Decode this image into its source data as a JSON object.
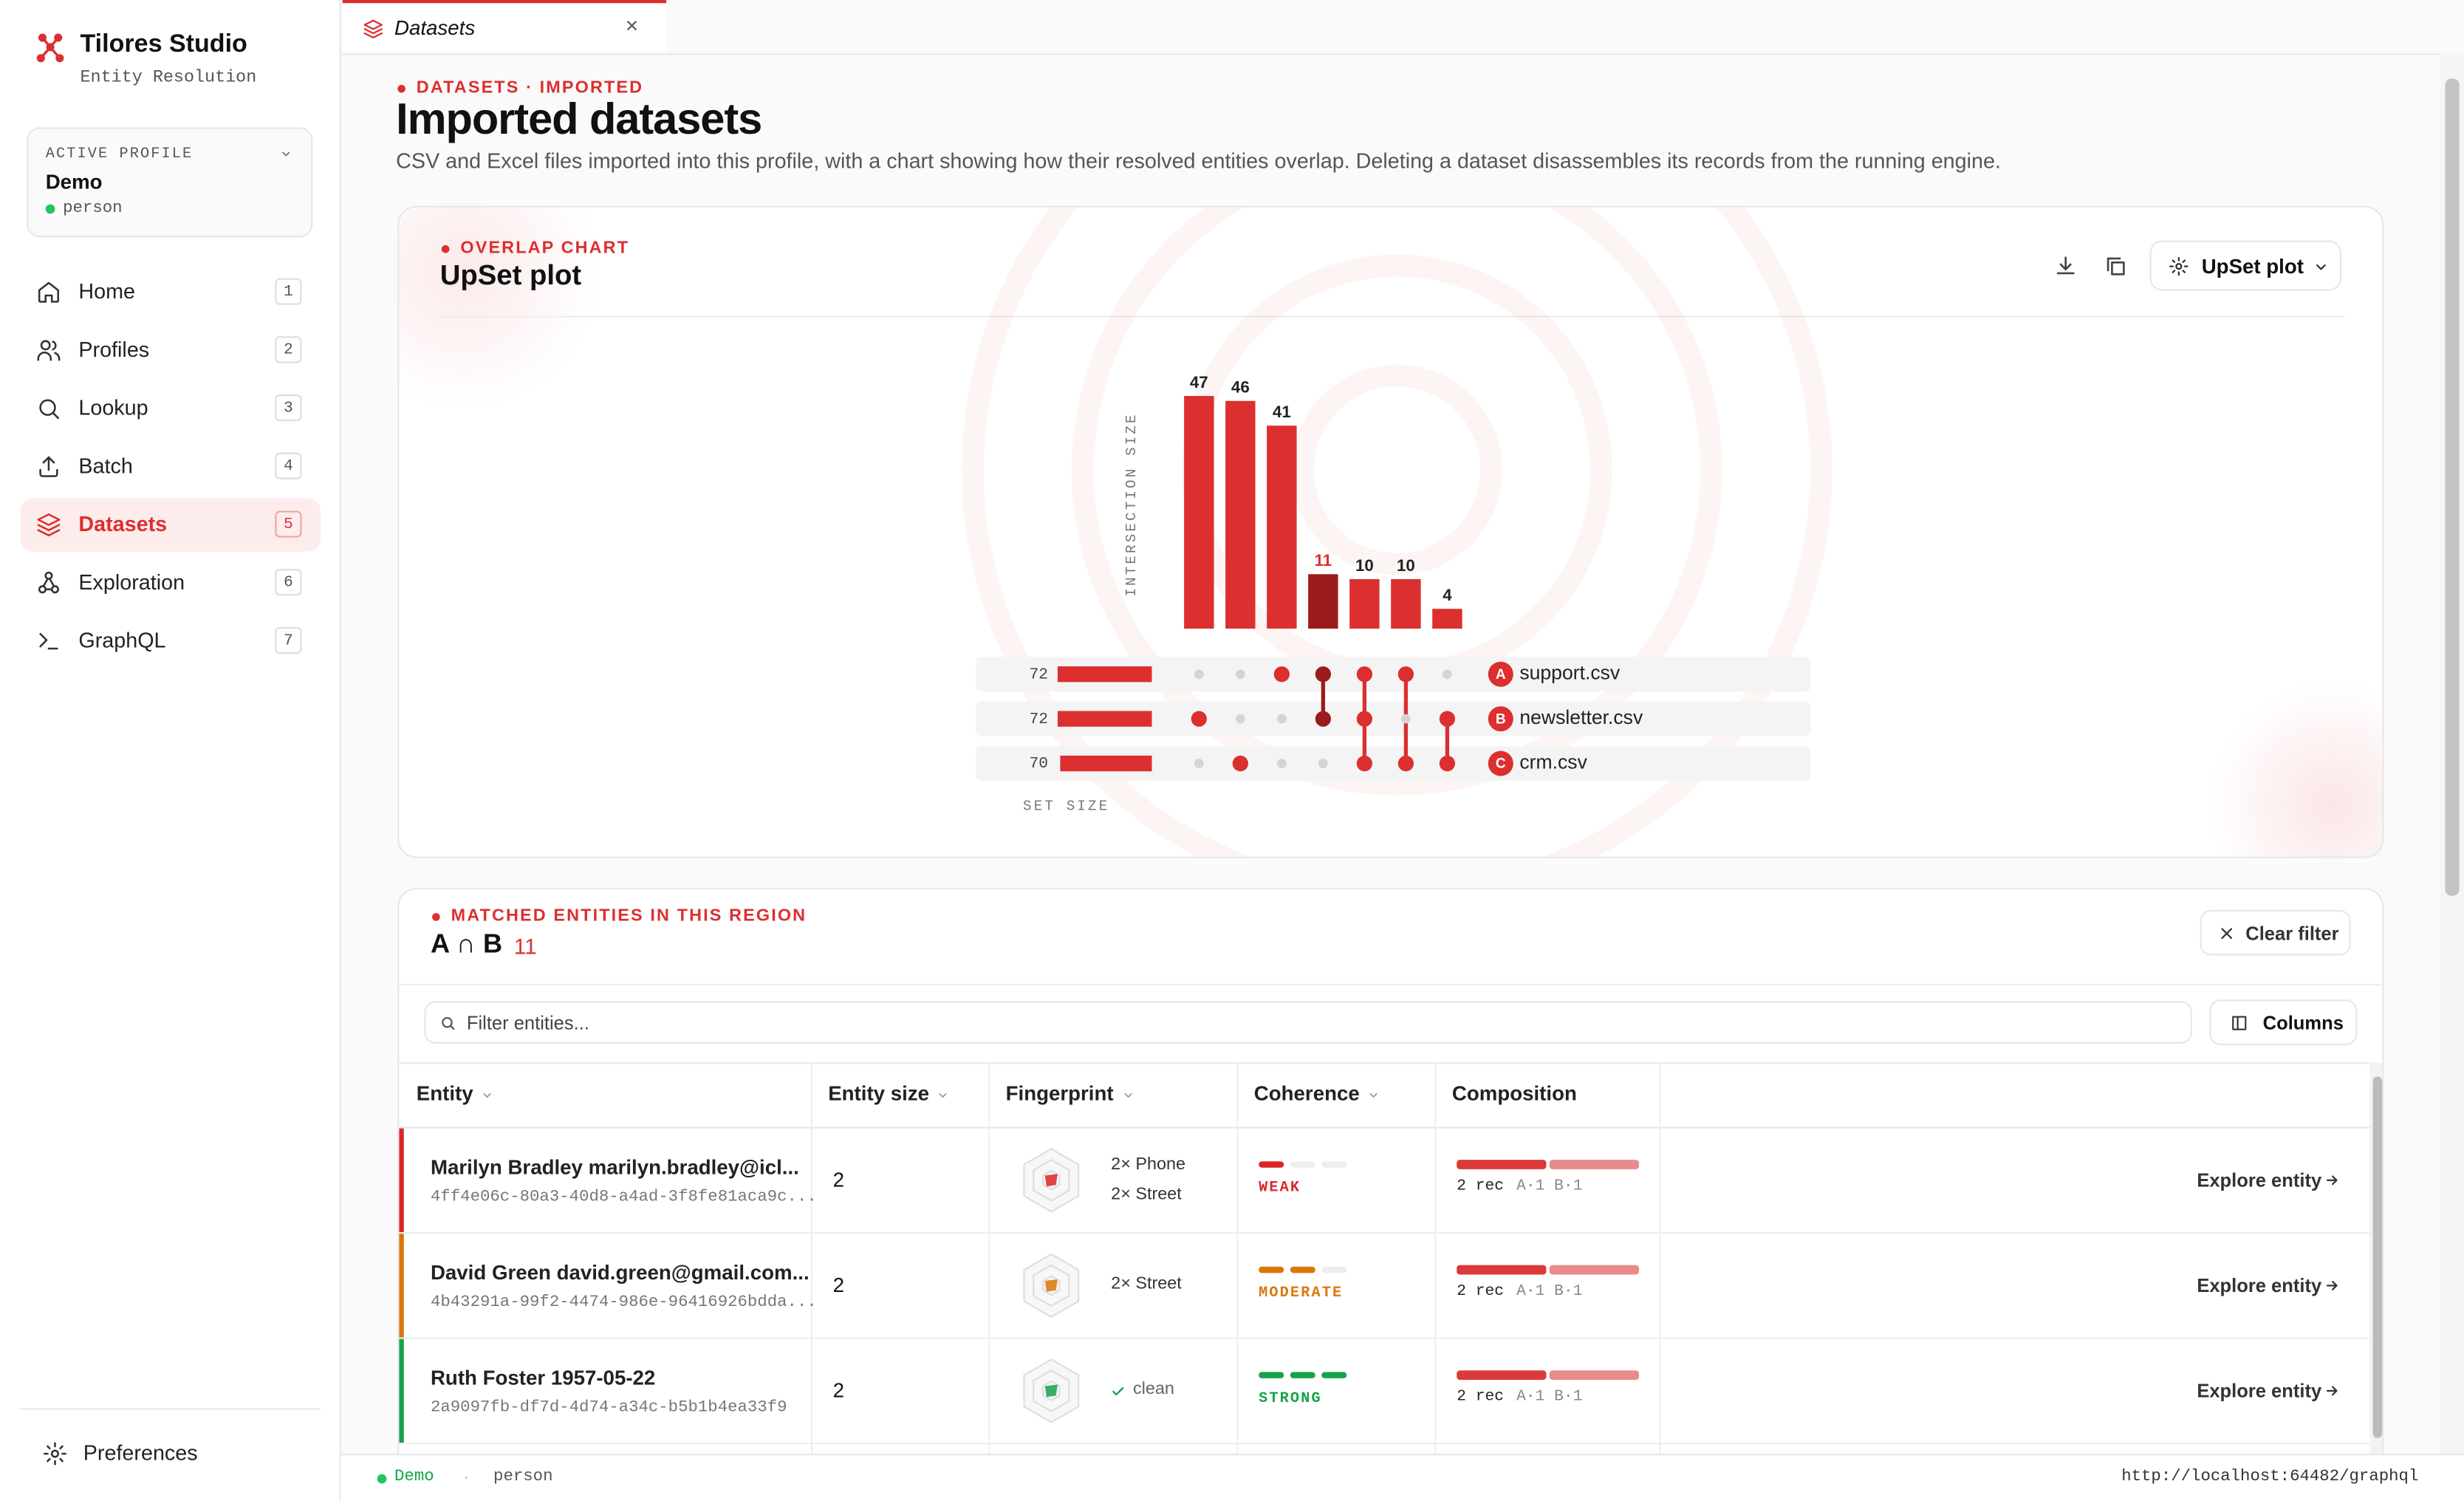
{
  "app": {
    "name": "Tilores Studio",
    "subtitle": "Entity Resolution"
  },
  "profile": {
    "label": "ACTIVE PROFILE",
    "name": "Demo",
    "type": "person"
  },
  "nav": [
    {
      "label": "Home",
      "key": "1"
    },
    {
      "label": "Profiles",
      "key": "2"
    },
    {
      "label": "Lookup",
      "key": "3"
    },
    {
      "label": "Batch",
      "key": "4"
    },
    {
      "label": "Datasets",
      "key": "5",
      "active": true
    },
    {
      "label": "Exploration",
      "key": "6"
    },
    {
      "label": "GraphQL",
      "key": "7"
    }
  ],
  "preferences": "Preferences",
  "tab": "Datasets",
  "header": {
    "eyebrow": "DATASETS · IMPORTED",
    "title": "Imported datasets",
    "description": "CSV and Excel files imported into this profile, with a chart showing how their resolved entities overlap. Deleting a dataset disassembles its records from the running engine."
  },
  "chart": {
    "eyebrow": "OVERLAP CHART",
    "title": "UpSet plot",
    "selector": "UpSet plot",
    "y_label": "INTERSECTION SIZE",
    "x_label": "SET SIZE",
    "sets": [
      {
        "letter": "A",
        "name": "support.csv",
        "size": 72
      },
      {
        "letter": "B",
        "name": "newsletter.csv",
        "size": 72
      },
      {
        "letter": "C",
        "name": "crm.csv",
        "size": 70
      }
    ],
    "intersections": [
      {
        "size": 47,
        "members": [
          false,
          true,
          false
        ]
      },
      {
        "size": 46,
        "members": [
          false,
          false,
          true
        ]
      },
      {
        "size": 41,
        "members": [
          true,
          false,
          false
        ]
      },
      {
        "size": 11,
        "members": [
          true,
          true,
          false
        ],
        "highlight": true
      },
      {
        "size": 10,
        "members": [
          true,
          true,
          true
        ]
      },
      {
        "size": 10,
        "members": [
          true,
          false,
          true
        ]
      },
      {
        "size": 4,
        "members": [
          false,
          true,
          true
        ]
      }
    ]
  },
  "matched": {
    "eyebrow": "MATCHED ENTITIES IN THIS REGION",
    "region": "A ∩ B",
    "count": 11,
    "clear": "Clear filter",
    "filter_placeholder": "Filter entities...",
    "columns_button": "Columns"
  },
  "table": {
    "columns": [
      {
        "label": "Entity",
        "sortable": true
      },
      {
        "label": "Entity size",
        "sortable": true
      },
      {
        "label": "Fingerprint",
        "sortable": true
      },
      {
        "label": "Coherence",
        "sortable": true
      },
      {
        "label": "Composition"
      }
    ],
    "rows": [
      {
        "name": "Marilyn Bradley marilyn.bradley@icl...",
        "id": "4ff4e06c-80a3-40d8-a4ad-3f8fe81aca9c...",
        "size": "2",
        "fingerprint": [
          "2× Phone",
          "2× Street"
        ],
        "coherence": "WEAK",
        "coherence_level": 1,
        "color": "#dc2626",
        "composition": "2 rec",
        "sources": "A·1 B·1",
        "action": "Explore entity"
      },
      {
        "name": "David Green david.green@gmail.com...",
        "id": "4b43291a-99f2-4474-986e-96416926bdda...",
        "size": "2",
        "fingerprint": [
          "2× Street"
        ],
        "coherence": "MODERATE",
        "coherence_level": 2,
        "color": "#d97706",
        "composition": "2 rec",
        "sources": "A·1 B·1",
        "action": "Explore entity"
      },
      {
        "name": "Ruth Foster 1957-05-22",
        "id": "2a9097fb-df7d-4d74-a34c-b5b1b4ea33f9",
        "size": "2",
        "fingerprint": [],
        "fingerprint_note": "clean",
        "coherence": "STRONG",
        "coherence_level": 3,
        "color": "#16a34a",
        "composition": "2 rec",
        "sources": "A·1 B·1",
        "action": "Explore entity"
      }
    ]
  },
  "status": {
    "profile": "Demo",
    "type": "person",
    "url": "http://localhost:64482/graphql"
  }
}
